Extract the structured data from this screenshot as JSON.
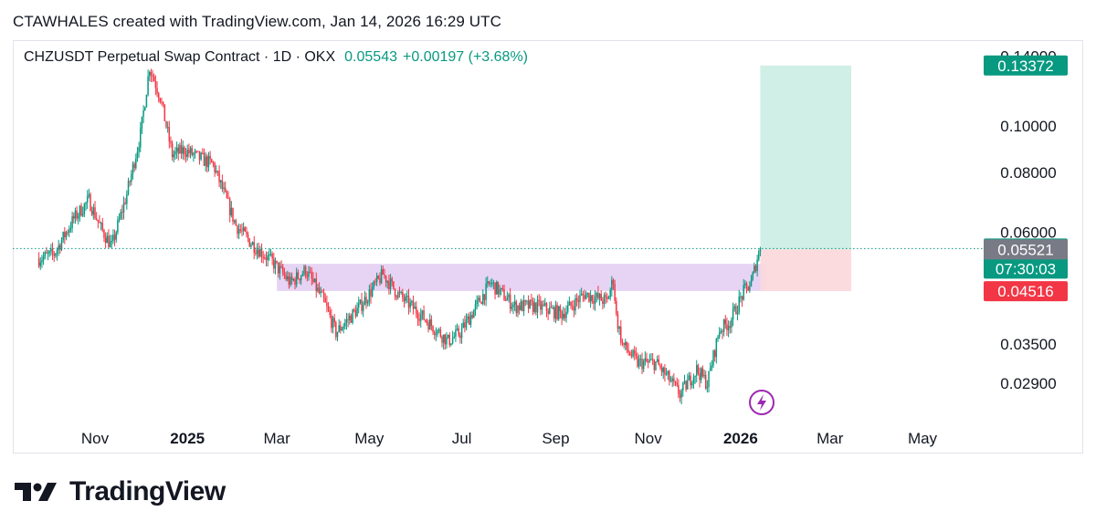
{
  "header": {
    "caption": "CTAWHALES created with TradingView.com, Jan 14, 2026 16:29 UTC"
  },
  "legend": {
    "symbol": "CHZUSDT Perpetual Swap Contract · 1D · OKX",
    "price": "0.05543",
    "change": "+0.00197 (+3.68%)"
  },
  "footer": {
    "brand": "TradingView"
  },
  "colors": {
    "up": "#089981",
    "down": "#f23645",
    "zone": "#e1c8f0",
    "target": "#cdeee5",
    "stop": "#fbd9dc",
    "grey_label": "#787b86",
    "lightning": "#9c27b0"
  },
  "icons": {
    "lightning": "lightning-icon",
    "logo": "tradingview-logo-icon"
  },
  "chart_data": {
    "type": "candlestick",
    "x_axis": {
      "ticks": [
        {
          "label": "Nov",
          "date": "2024-11-01",
          "bold": false
        },
        {
          "label": "2025",
          "date": "2025-01-01",
          "bold": true
        },
        {
          "label": "Mar",
          "date": "2025-03-01",
          "bold": false
        },
        {
          "label": "May",
          "date": "2025-05-01",
          "bold": false
        },
        {
          "label": "Jul",
          "date": "2025-07-01",
          "bold": false
        },
        {
          "label": "Sep",
          "date": "2025-09-01",
          "bold": false
        },
        {
          "label": "Nov",
          "date": "2025-11-01",
          "bold": false
        },
        {
          "label": "2026",
          "date": "2026-01-01",
          "bold": true
        },
        {
          "label": "Mar",
          "date": "2026-03-01",
          "bold": false
        },
        {
          "label": "May",
          "date": "2026-05-01",
          "bold": false
        }
      ]
    },
    "y_axis": {
      "scale": "log",
      "ticks": [
        "0.02900",
        "0.03500",
        "0.06000",
        "0.08000",
        "0.10000",
        "0.14000"
      ]
    },
    "price_labels": [
      {
        "value": "0.13372",
        "kind": "target"
      },
      {
        "value": "0.05543",
        "kind": "last",
        "countdown": "07:30:03"
      },
      {
        "value": "0.05521",
        "kind": "entry"
      },
      {
        "value": "0.04516",
        "kind": "stop"
      }
    ],
    "last_price": 0.05543,
    "drawings": {
      "support_zone": {
        "from": "2025-03-01",
        "to": "2026-01-18",
        "top": 0.0515,
        "bottom": 0.0452
      },
      "position": {
        "from": "2026-01-14",
        "to": "2026-03-15",
        "entry": 0.05521,
        "target": 0.13372,
        "stop": 0.04516
      }
    },
    "series": {
      "start": "2024-09-25",
      "end": "2026-01-14",
      "anchors": [
        [
          "2024-09-25",
          0.0528
        ],
        [
          "2024-10-05",
          0.054
        ],
        [
          "2024-10-18",
          0.064
        ],
        [
          "2024-10-28",
          0.07
        ],
        [
          "2024-11-05",
          0.061
        ],
        [
          "2024-11-12",
          0.056
        ],
        [
          "2024-11-22",
          0.072
        ],
        [
          "2024-12-01",
          0.096
        ],
        [
          "2024-12-07",
          0.133
        ],
        [
          "2024-12-14",
          0.115
        ],
        [
          "2024-12-22",
          0.087
        ],
        [
          "2024-12-30",
          0.089
        ],
        [
          "2025-01-08",
          0.086
        ],
        [
          "2025-01-18",
          0.083
        ],
        [
          "2025-02-02",
          0.062
        ],
        [
          "2025-02-12",
          0.057
        ],
        [
          "2025-02-26",
          0.052
        ],
        [
          "2025-03-10",
          0.047
        ],
        [
          "2025-03-20",
          0.05
        ],
        [
          "2025-04-01",
          0.043
        ],
        [
          "2025-04-09",
          0.037
        ],
        [
          "2025-04-25",
          0.042
        ],
        [
          "2025-05-10",
          0.049
        ],
        [
          "2025-05-20",
          0.0445
        ],
        [
          "2025-06-05",
          0.04
        ],
        [
          "2025-06-22",
          0.0355
        ],
        [
          "2025-06-30",
          0.037
        ],
        [
          "2025-07-20",
          0.047
        ],
        [
          "2025-08-05",
          0.042
        ],
        [
          "2025-08-20",
          0.042
        ],
        [
          "2025-09-05",
          0.0405
        ],
        [
          "2025-09-20",
          0.0445
        ],
        [
          "2025-10-05",
          0.043
        ],
        [
          "2025-10-09",
          0.048
        ],
        [
          "2025-10-11",
          0.04
        ],
        [
          "2025-10-15",
          0.035
        ],
        [
          "2025-10-25",
          0.032
        ],
        [
          "2025-11-06",
          0.032
        ],
        [
          "2025-11-15",
          0.0295
        ],
        [
          "2025-11-22",
          0.0275
        ],
        [
          "2025-12-03",
          0.031
        ],
        [
          "2025-12-10",
          0.029
        ],
        [
          "2025-12-18",
          0.0375
        ],
        [
          "2025-12-25",
          0.039
        ],
        [
          "2026-01-03",
          0.045
        ],
        [
          "2026-01-08",
          0.047
        ],
        [
          "2026-01-12",
          0.053
        ],
        [
          "2026-01-14",
          0.05543
        ]
      ]
    }
  }
}
